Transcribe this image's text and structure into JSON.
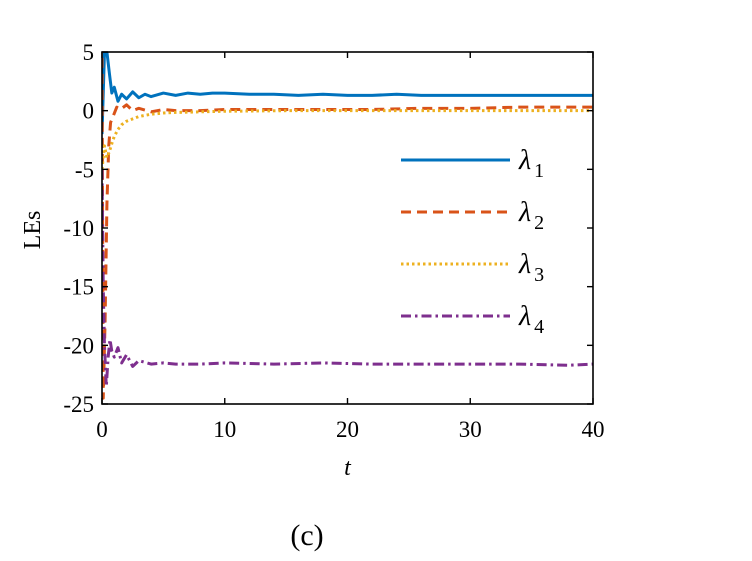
{
  "chart_data": {
    "type": "line",
    "xlabel": "t",
    "ylabel": "LEs",
    "xlim": [
      0,
      40
    ],
    "ylim": [
      -25,
      5
    ],
    "xticks": [
      0,
      10,
      20,
      30,
      40
    ],
    "yticks": [
      5,
      0,
      -5,
      -10,
      -15,
      -20,
      -25
    ],
    "legend_position": "right",
    "caption": "(c)",
    "series": [
      {
        "name": "λ1",
        "symbol": "λ",
        "sub": "1",
        "color": "#0072BD",
        "style": "solid",
        "x": [
          0,
          0.2,
          0.4,
          0.6,
          0.8,
          1.0,
          1.3,
          1.6,
          2.0,
          2.5,
          3.0,
          3.5,
          4.0,
          5,
          6,
          7,
          8,
          9,
          10,
          12,
          14,
          16,
          18,
          20,
          22,
          24,
          26,
          28,
          30,
          32,
          34,
          36,
          38,
          40
        ],
        "y": [
          -2,
          4.9,
          5.0,
          3.2,
          1.5,
          2.0,
          0.8,
          1.4,
          1.0,
          1.6,
          1.1,
          1.4,
          1.2,
          1.5,
          1.3,
          1.5,
          1.4,
          1.5,
          1.5,
          1.4,
          1.4,
          1.3,
          1.4,
          1.3,
          1.3,
          1.4,
          1.3,
          1.3,
          1.3,
          1.3,
          1.3,
          1.3,
          1.3,
          1.3
        ]
      },
      {
        "name": "λ2",
        "symbol": "λ",
        "sub": "2",
        "color": "#D95319",
        "style": "dashed",
        "x": [
          0,
          0.1,
          0.25,
          0.4,
          0.55,
          0.7,
          0.9,
          1.2,
          1.5,
          2.0,
          2.5,
          3.0,
          4.0,
          5,
          6,
          8,
          10,
          14,
          18,
          22,
          26,
          30,
          34,
          38,
          40
        ],
        "y": [
          4.5,
          -24.5,
          -18,
          -8,
          -3,
          -1,
          -0.5,
          0.3,
          0.1,
          0.5,
          0.0,
          0.2,
          -0.1,
          0.1,
          0.0,
          0.0,
          0.1,
          0.1,
          0.1,
          0.1,
          0.2,
          0.2,
          0.3,
          0.3,
          0.3
        ]
      },
      {
        "name": "λ3",
        "symbol": "λ",
        "sub": "3",
        "color": "#EDB120",
        "style": "dotted",
        "x": [
          0,
          0.2,
          0.4,
          0.6,
          0.8,
          1.0,
          1.3,
          1.6,
          2.0,
          2.5,
          3.0,
          4.0,
          5,
          6,
          8,
          10,
          15,
          20,
          25,
          30,
          35,
          40
        ],
        "y": [
          -5,
          -3,
          -4,
          -3.5,
          -2.8,
          -2.2,
          -1.6,
          -1.2,
          -0.9,
          -0.7,
          -0.5,
          -0.3,
          -0.2,
          -0.15,
          -0.1,
          -0.05,
          0,
          0,
          0,
          0,
          0,
          0
        ]
      },
      {
        "name": "λ4",
        "symbol": "λ",
        "sub": "4",
        "color": "#7E2F8E",
        "style": "dashdot",
        "x": [
          0,
          0.1,
          0.2,
          0.35,
          0.5,
          0.65,
          0.8,
          1.0,
          1.3,
          1.6,
          2.0,
          2.5,
          3.0,
          4.0,
          5,
          6,
          8,
          10,
          14,
          18,
          22,
          26,
          30,
          34,
          38,
          40
        ],
        "y": [
          -5,
          -15,
          -20,
          -23.5,
          -21,
          -19.5,
          -20.5,
          -21.0,
          -20.2,
          -21.5,
          -20.8,
          -21.8,
          -21.3,
          -21.6,
          -21.5,
          -21.6,
          -21.6,
          -21.5,
          -21.6,
          -21.5,
          -21.6,
          -21.6,
          -21.6,
          -21.6,
          -21.7,
          -21.6
        ]
      }
    ]
  }
}
